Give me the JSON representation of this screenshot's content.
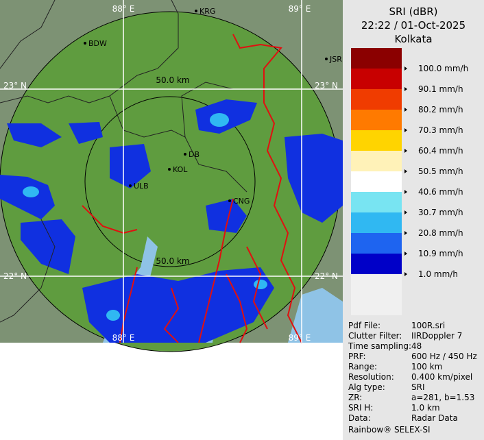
{
  "header": {
    "title": "SRI (dBR)",
    "time": "22:22 / 01-Oct-2025",
    "location": "Kolkata"
  },
  "legend": [
    {
      "label": "100.0 mm/h",
      "color": "#8b0000"
    },
    {
      "label": "90.1 mm/h",
      "color": "#c80000"
    },
    {
      "label": "80.2 mm/h",
      "color": "#f03c00"
    },
    {
      "label": "70.3 mm/h",
      "color": "#ff7a00"
    },
    {
      "label": "60.4 mm/h",
      "color": "#ffd400"
    },
    {
      "label": "50.5 mm/h",
      "color": "#fff2b8"
    },
    {
      "label": "40.6 mm/h",
      "color": "#ffffff"
    },
    {
      "label": "30.7 mm/h",
      "color": "#78e4f2"
    },
    {
      "label": "20.8 mm/h",
      "color": "#30b8f2"
    },
    {
      "label": "10.9 mm/h",
      "color": "#1e64f0"
    },
    {
      "label": "1.0 mm/h",
      "color": "#0000c8"
    }
  ],
  "map": {
    "grid_labels": [
      "88° E",
      "89° E",
      "23° N",
      "23° N",
      "22° N",
      "22° N",
      "88° E",
      "89° E"
    ],
    "range_labels": [
      "50.0 km",
      "50.0 km"
    ],
    "cities": [
      "KRG",
      "BDW",
      "JSR",
      "DB",
      "KOL",
      "ULB",
      "CNG"
    ]
  },
  "info": [
    [
      "Pdf File:",
      "100R.sri"
    ],
    [
      "Clutter Filter:",
      "IIRDoppler 7"
    ],
    [
      "Time sampling:",
      "48"
    ],
    [
      "PRF:",
      "600 Hz / 450 Hz"
    ],
    [
      "Range:",
      "100 km"
    ],
    [
      "Resolution:",
      "0.400 km/pixel"
    ],
    [
      "Alg type:",
      "SRI"
    ],
    [
      "ZR:",
      "a=281, b=1.53"
    ],
    [
      "SRI H:",
      "1.0 km"
    ],
    [
      "Data:",
      "Radar Data"
    ]
  ],
  "footer": "Rainbow® SELEX-SI"
}
